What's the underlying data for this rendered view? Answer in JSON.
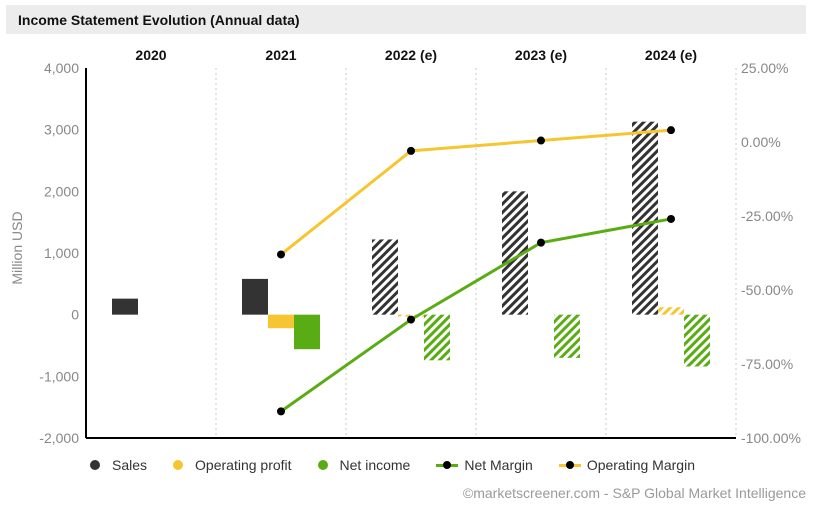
{
  "title": "Income Statement Evolution (Annual data)",
  "credit": "©marketscreener.com - S&P Global Market Intelligence",
  "chart_data": {
    "type": "bar",
    "categories": [
      "2020",
      "2021",
      "2022 (e)",
      "2023 (e)",
      "2024 (e)"
    ],
    "estimated": [
      false,
      false,
      true,
      true,
      true
    ],
    "ylabel": "Million USD",
    "ylim": [
      -2000,
      4000
    ],
    "yticks": [
      -2000,
      -1000,
      0,
      1000,
      2000,
      3000,
      4000
    ],
    "ytick_labels": [
      "-2,000",
      "-1,000",
      "0",
      "1,000",
      "2,000",
      "3,000",
      "4,000"
    ],
    "y2lim": [
      -100,
      25
    ],
    "y2ticks": [
      -100,
      -75,
      -50,
      -25,
      0,
      25
    ],
    "y2tick_labels": [
      "-100.00%",
      "-75.00%",
      "-50.00%",
      "-25.00%",
      "0.00%",
      "25.00%"
    ],
    "bar_series": [
      {
        "name": "Sales",
        "color": "#333333",
        "values": [
          260,
          580,
          1220,
          2000,
          3130
        ]
      },
      {
        "name": "Operating profit",
        "color": "#f7c532",
        "values": [
          null,
          -220,
          -30,
          null,
          120
        ]
      },
      {
        "name": "Net income",
        "color": "#5aac14",
        "values": [
          null,
          -560,
          -740,
          -700,
          -840
        ]
      }
    ],
    "line_series": [
      {
        "name": "Net Margin",
        "color": "#5aac14",
        "axis": "right",
        "values": [
          null,
          -91,
          -60,
          -34,
          -26
        ]
      },
      {
        "name": "Operating Margin",
        "color": "#f7c532",
        "axis": "right",
        "values": [
          null,
          -38,
          -3,
          0.5,
          4
        ]
      }
    ],
    "grid": false,
    "legend_position": "bottom"
  }
}
